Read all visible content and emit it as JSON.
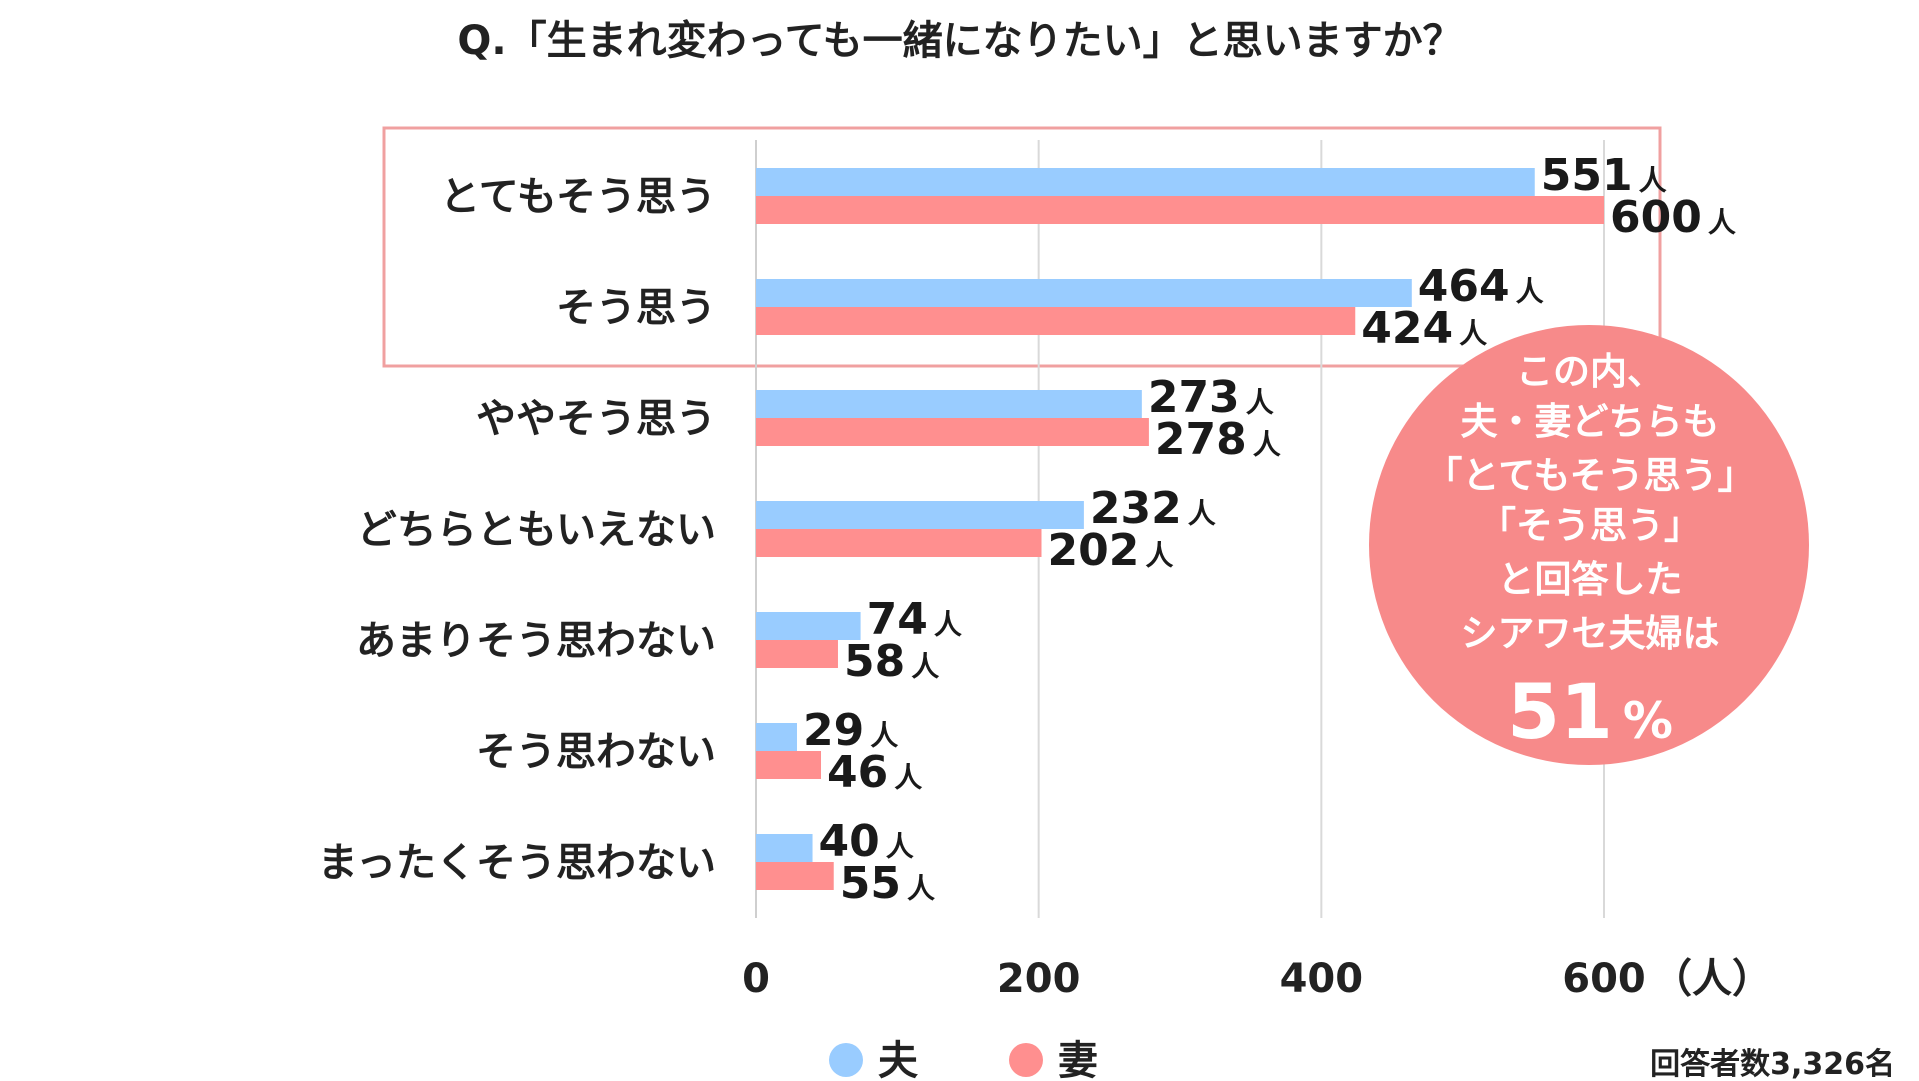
{
  "chart_data": {
    "type": "bar",
    "orientation": "horizontal",
    "title": "Q.「生まれ変わっても一緒になりたい」と思いますか？",
    "categories": [
      "とてもそう思う",
      "そう思う",
      "ややそう思う",
      "どちらともいえない",
      "あまりそう思わない",
      "そう思わない",
      "まったくそう思わない"
    ],
    "series": [
      {
        "name": "夫",
        "color": "#99ccff",
        "values": [
          551,
          464,
          273,
          232,
          74,
          29,
          40
        ]
      },
      {
        "name": "妻",
        "color": "#ff8f8f",
        "values": [
          600,
          424,
          278,
          202,
          58,
          46,
          55
        ]
      }
    ],
    "value_unit": "人",
    "xlim": [
      0,
      600
    ],
    "x_ticks": [
      "0",
      "200",
      "400",
      "600"
    ],
    "x_unit_label": "（人）",
    "grid": true,
    "legend_position": "bottom",
    "highlighted_categories": [
      "とてもそう思う",
      "そう思う"
    ],
    "highlight_color": "#f0a0a0",
    "respondents_note": "回答者数3,326名",
    "callout": {
      "color": "#f78a8a",
      "lines": [
        "この内、",
        "夫・妻どちらも",
        "「とてもそう思う」",
        "「そう思う」",
        "と回答した",
        "シアワセ夫婦は"
      ],
      "value": "51",
      "unit": "%"
    }
  }
}
